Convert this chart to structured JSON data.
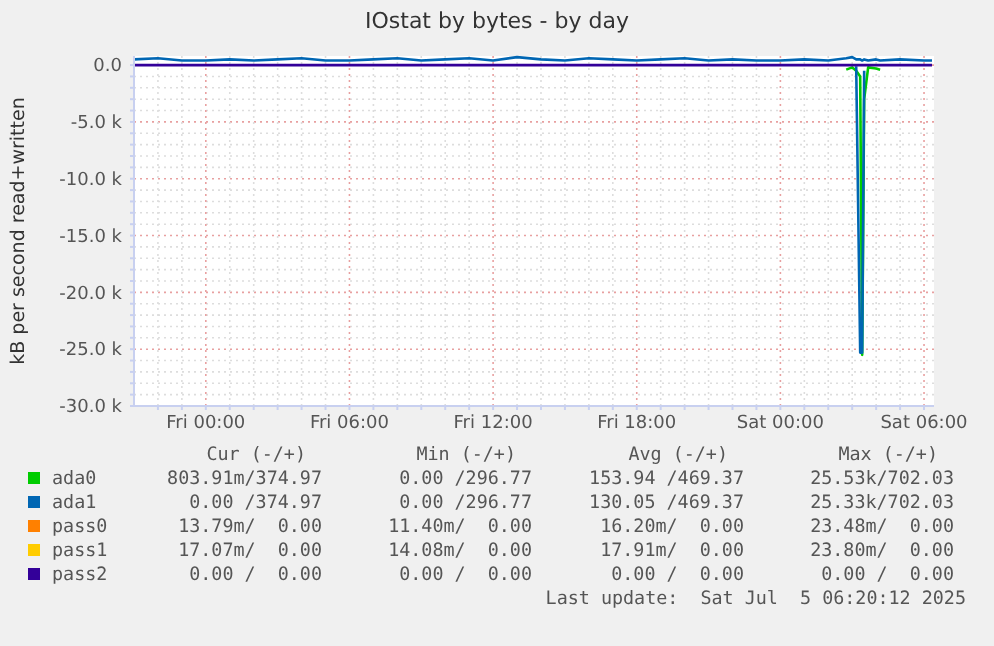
{
  "chart_data": {
    "type": "line",
    "title": "IOstat by bytes - by day",
    "ylabel": "kB per second read+written",
    "x": [
      "2025-07-03T21:00",
      "2025-07-03T22:00",
      "2025-07-03T23:00",
      "2025-07-04T00:00",
      "2025-07-04T01:00",
      "2025-07-04T02:00",
      "2025-07-04T03:00",
      "2025-07-04T04:00",
      "2025-07-04T05:00",
      "2025-07-04T06:00",
      "2025-07-04T07:00",
      "2025-07-04T08:00",
      "2025-07-04T09:00",
      "2025-07-04T10:00",
      "2025-07-04T11:00",
      "2025-07-04T12:00",
      "2025-07-04T13:00",
      "2025-07-04T14:00",
      "2025-07-04T15:00",
      "2025-07-04T16:00",
      "2025-07-04T17:00",
      "2025-07-04T18:00",
      "2025-07-04T19:00",
      "2025-07-04T20:00",
      "2025-07-04T21:00",
      "2025-07-04T22:00",
      "2025-07-04T23:00",
      "2025-07-05T00:00",
      "2025-07-05T01:00",
      "2025-07-05T02:00",
      "2025-07-05T02:45",
      "2025-07-05T03:00",
      "2025-07-05T03:10",
      "2025-07-05T03:20",
      "2025-07-05T03:25",
      "2025-07-05T03:30",
      "2025-07-05T03:40",
      "2025-07-05T04:00",
      "2025-07-05T04:10",
      "2025-07-05T05:00",
      "2025-07-05T06:00",
      "2025-07-05T06:20"
    ],
    "series": [
      {
        "name": "ada0",
        "color": "#00cc00",
        "values": [
          null,
          null,
          null,
          null,
          null,
          null,
          null,
          null,
          null,
          null,
          null,
          null,
          null,
          null,
          null,
          null,
          null,
          null,
          null,
          null,
          null,
          null,
          null,
          null,
          null,
          null,
          null,
          null,
          null,
          null,
          -400,
          -200,
          -500,
          -1000,
          -25500,
          -3000,
          -200,
          -300,
          -400,
          null,
          null,
          null
        ]
      },
      {
        "name": "ada1",
        "color": "#0066b3",
        "values": [
          null,
          null,
          null,
          null,
          null,
          null,
          null,
          null,
          null,
          null,
          null,
          null,
          null,
          null,
          null,
          null,
          null,
          null,
          null,
          null,
          null,
          null,
          null,
          null,
          null,
          null,
          null,
          null,
          null,
          null,
          null,
          null,
          -100,
          -25300,
          -25300,
          -500,
          null,
          null,
          null,
          null,
          null,
          null
        ]
      },
      {
        "color": "#0066b3",
        "values": [
          500,
          600,
          400,
          400,
          500,
          400,
          500,
          600,
          400,
          400,
          500,
          600,
          400,
          500,
          600,
          400,
          700,
          500,
          400,
          600,
          500,
          400,
          500,
          600,
          400,
          500,
          400,
          400,
          500,
          400,
          600,
          700,
          500,
          500,
          400,
          500,
          400,
          500,
          400,
          500,
          400,
          400
        ]
      },
      {
        "name": "pass0",
        "color": "#ff8000",
        "values": [
          null,
          null,
          null,
          null,
          null,
          null,
          null,
          null,
          null,
          null,
          null,
          null,
          null,
          null,
          null,
          null,
          null,
          null,
          null,
          null,
          null,
          null,
          null,
          null,
          null,
          null,
          null,
          null,
          null,
          null,
          null,
          null,
          null,
          null,
          null,
          null,
          null,
          null,
          null,
          null,
          null,
          null
        ]
      },
      {
        "name": "pass1",
        "color": "#ffcc00",
        "values": [
          null,
          null,
          null,
          null,
          null,
          null,
          null,
          null,
          null,
          null,
          null,
          null,
          null,
          null,
          null,
          null,
          null,
          null,
          null,
          null,
          null,
          null,
          null,
          null,
          null,
          null,
          null,
          null,
          null,
          null,
          null,
          null,
          null,
          null,
          null,
          null,
          null,
          null,
          null,
          null,
          null,
          null
        ]
      },
      {
        "name": "pass2",
        "color": "#330099",
        "values": [
          0,
          0,
          0,
          0,
          0,
          0,
          0,
          0,
          0,
          0,
          0,
          0,
          0,
          0,
          0,
          0,
          0,
          0,
          0,
          0,
          0,
          0,
          0,
          0,
          0,
          0,
          0,
          0,
          0,
          0,
          0,
          0,
          0,
          0,
          0,
          0,
          0,
          0,
          0,
          0,
          0,
          0
        ]
      }
    ],
    "xlim": [
      "2025-07-03T21:00",
      "2025-07-05T06:25"
    ],
    "xticks": [
      {
        "value": "2025-07-03T22:00",
        "label": null
      },
      {
        "value": "2025-07-03T23:00",
        "label": null
      },
      {
        "value": "2025-07-04T00:00",
        "label": "Fri 00:00"
      },
      {
        "value": "2025-07-04T01:00",
        "label": null
      },
      {
        "value": "2025-07-04T02:00",
        "label": null
      },
      {
        "value": "2025-07-04T03:00",
        "label": null
      },
      {
        "value": "2025-07-04T04:00",
        "label": null
      },
      {
        "value": "2025-07-04T05:00",
        "label": null
      },
      {
        "value": "2025-07-04T06:00",
        "label": "Fri 06:00"
      },
      {
        "value": "2025-07-04T07:00",
        "label": null
      },
      {
        "value": "2025-07-04T08:00",
        "label": null
      },
      {
        "value": "2025-07-04T09:00",
        "label": null
      },
      {
        "value": "2025-07-04T10:00",
        "label": null
      },
      {
        "value": "2025-07-04T11:00",
        "label": null
      },
      {
        "value": "2025-07-04T12:00",
        "label": "Fri 12:00"
      },
      {
        "value": "2025-07-04T13:00",
        "label": null
      },
      {
        "value": "2025-07-04T14:00",
        "label": null
      },
      {
        "value": "2025-07-04T15:00",
        "label": null
      },
      {
        "value": "2025-07-04T16:00",
        "label": null
      },
      {
        "value": "2025-07-04T17:00",
        "label": null
      },
      {
        "value": "2025-07-04T18:00",
        "label": "Fri 18:00"
      },
      {
        "value": "2025-07-04T19:00",
        "label": null
      },
      {
        "value": "2025-07-04T20:00",
        "label": null
      },
      {
        "value": "2025-07-04T21:00",
        "label": null
      },
      {
        "value": "2025-07-04T22:00",
        "label": null
      },
      {
        "value": "2025-07-04T23:00",
        "label": null
      },
      {
        "value": "2025-07-05T00:00",
        "label": "Sat 00:00"
      },
      {
        "value": "2025-07-05T01:00",
        "label": null
      },
      {
        "value": "2025-07-05T02:00",
        "label": null
      },
      {
        "value": "2025-07-05T03:00",
        "label": null
      },
      {
        "value": "2025-07-05T04:00",
        "label": null
      },
      {
        "value": "2025-07-05T05:00",
        "label": null
      },
      {
        "value": "2025-07-05T06:00",
        "label": "Sat 06:00"
      }
    ],
    "ylim": [
      -30000,
      800
    ],
    "yticks": [
      {
        "value": 0,
        "label": "0.0"
      },
      {
        "value": -1000,
        "label": null
      },
      {
        "value": -2000,
        "label": null
      },
      {
        "value": -3000,
        "label": null
      },
      {
        "value": -4000,
        "label": null
      },
      {
        "value": -5000,
        "label": "-5.0 k"
      },
      {
        "value": -6000,
        "label": null
      },
      {
        "value": -7000,
        "label": null
      },
      {
        "value": -8000,
        "label": null
      },
      {
        "value": -9000,
        "label": null
      },
      {
        "value": -10000,
        "label": "-10.0 k"
      },
      {
        "value": -11000,
        "label": null
      },
      {
        "value": -12000,
        "label": null
      },
      {
        "value": -13000,
        "label": null
      },
      {
        "value": -14000,
        "label": null
      },
      {
        "value": -15000,
        "label": "-15.0 k"
      },
      {
        "value": -16000,
        "label": null
      },
      {
        "value": -17000,
        "label": null
      },
      {
        "value": -18000,
        "label": null
      },
      {
        "value": -19000,
        "label": null
      },
      {
        "value": -20000,
        "label": "-20.0 k"
      },
      {
        "value": -21000,
        "label": null
      },
      {
        "value": -22000,
        "label": null
      },
      {
        "value": -23000,
        "label": null
      },
      {
        "value": -24000,
        "label": null
      },
      {
        "value": -25000,
        "label": "-25.0 k"
      },
      {
        "value": -26000,
        "label": null
      },
      {
        "value": -27000,
        "label": null
      },
      {
        "value": -28000,
        "label": null
      },
      {
        "value": -29000,
        "label": null
      },
      {
        "value": -30000,
        "label": "-30.0 k"
      }
    ],
    "grid": true,
    "legend": "bottom",
    "marker": "none",
    "line_style": "solid",
    "annotations": [
      "Cur (-/+)",
      "Min (-/+)",
      "Avg (-/+)",
      "Max (-/+)",
      "803.91m/374.97",
      "0.00 /296.77",
      "153.94 /469.37",
      "25.53k/702.03",
      "0.00 /374.97",
      "0.00 /296.77",
      "130.05 /469.37",
      "25.33k/702.03",
      "13.79m/  0.00",
      "11.40m/  0.00",
      "16.20m/  0.00",
      "23.48m/  0.00",
      "17.07m/  0.00",
      "14.08m/  0.00",
      "17.91m/  0.00",
      "23.80m/  0.00",
      "0.00 /  0.00",
      "0.00 /  0.00",
      "0.00 /  0.00",
      "0.00 /  0.00",
      "Last update:  Sat Jul  5 06:20:12 2025"
    ]
  }
}
